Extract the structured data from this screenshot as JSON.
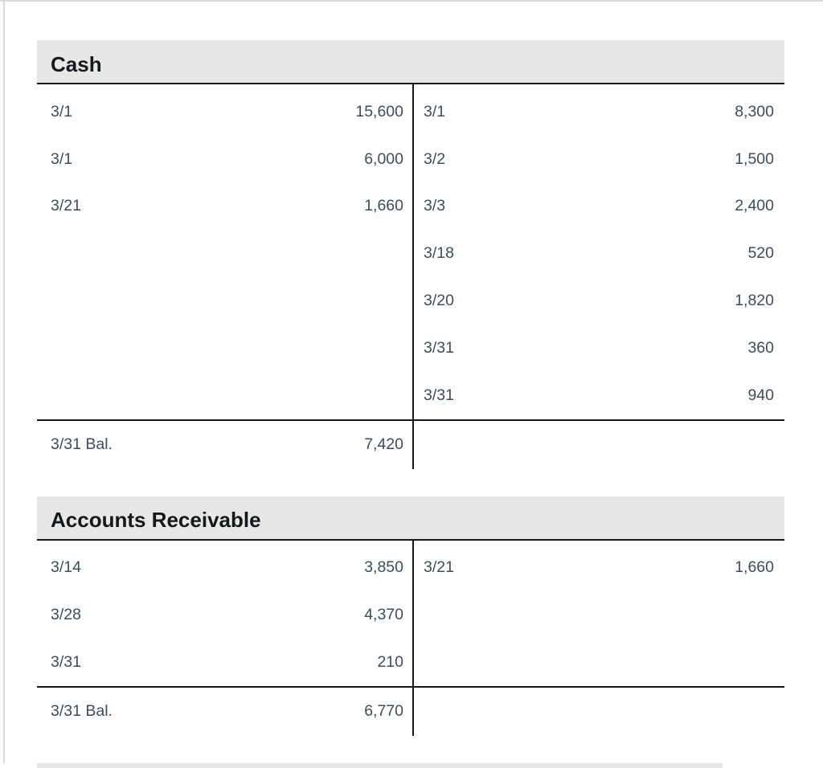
{
  "colors": {
    "header_bg": "#e7e7e7",
    "line": "#15181b",
    "text": "#3d4d5b",
    "title_text": "#15181b",
    "panel_edge": "#dadada",
    "page_bg": "#ffffff"
  },
  "accounts": [
    {
      "title": "Cash",
      "debits": [
        {
          "date": "3/1",
          "amount": "15,600"
        },
        {
          "date": "3/1",
          "amount": "6,000"
        },
        {
          "date": "3/21",
          "amount": "1,660"
        }
      ],
      "credits": [
        {
          "date": "3/1",
          "amount": "8,300"
        },
        {
          "date": "3/2",
          "amount": "1,500"
        },
        {
          "date": "3/3",
          "amount": "2,400"
        },
        {
          "date": "3/18",
          "amount": "520"
        },
        {
          "date": "3/20",
          "amount": "1,820"
        },
        {
          "date": "3/31",
          "amount": "360"
        },
        {
          "date": "3/31",
          "amount": "940"
        }
      ],
      "balance": {
        "label": "3/31 Bal.",
        "amount": "7,420",
        "side": "debit"
      }
    },
    {
      "title": "Accounts Receivable",
      "debits": [
        {
          "date": "3/14",
          "amount": "3,850"
        },
        {
          "date": "3/28",
          "amount": "4,370"
        },
        {
          "date": "3/31",
          "amount": "210"
        }
      ],
      "credits": [
        {
          "date": "3/21",
          "amount": "1,660"
        }
      ],
      "balance": {
        "label": "3/31 Bal.",
        "amount": "6,770",
        "side": "debit"
      }
    }
  ],
  "next_account_partial": {
    "visible": true
  }
}
